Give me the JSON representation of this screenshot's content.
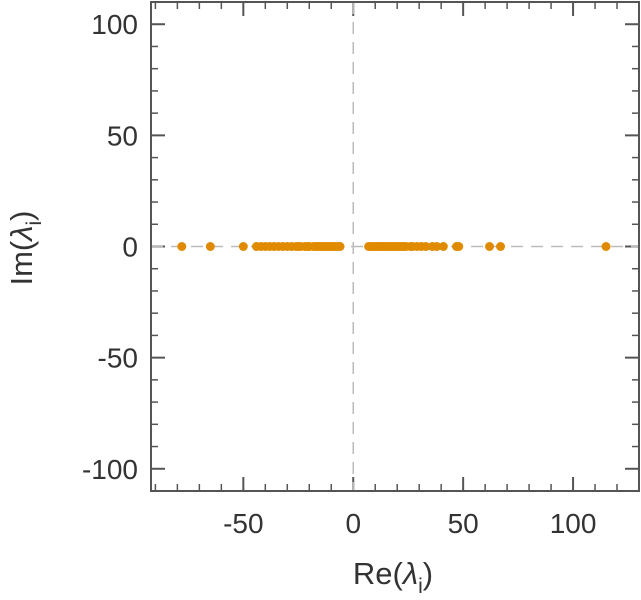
{
  "chart_data": {
    "type": "scatter",
    "xlabel": {
      "prefix": "Re(",
      "symbol": "λ",
      "subscript": "i",
      "suffix": ")"
    },
    "ylabel": {
      "prefix": "Im(",
      "symbol": "λ",
      "subscript": "i",
      "suffix": ")"
    },
    "xlim": [
      -92,
      130
    ],
    "ylim": [
      -110,
      110
    ],
    "xticks": [
      -50,
      0,
      50,
      100
    ],
    "yticks": [
      -100,
      -50,
      0,
      50,
      100
    ],
    "xtick_labels": [
      "-50",
      "0",
      "50",
      "100"
    ],
    "ytick_labels": [
      "-100",
      "-50",
      "0",
      "50",
      "100"
    ],
    "minor_step": 10,
    "zero_lines": true,
    "grid": false,
    "marker_color": "#E08A00",
    "series": [
      {
        "points": [
          [
            -78,
            0
          ],
          [
            -65,
            0
          ],
          [
            -50,
            0
          ],
          [
            -44,
            0
          ],
          [
            -42,
            0
          ],
          [
            -40,
            0
          ],
          [
            -38,
            0
          ],
          [
            -36,
            0
          ],
          [
            -34,
            0
          ],
          [
            -32,
            0
          ],
          [
            -30,
            0
          ],
          [
            -28,
            0
          ],
          [
            -26,
            0
          ],
          [
            -25,
            0
          ],
          [
            -24,
            0
          ],
          [
            -22,
            0
          ],
          [
            -21,
            0
          ],
          [
            -20,
            0
          ],
          [
            -18,
            0
          ],
          [
            -17,
            0
          ],
          [
            -16,
            0
          ],
          [
            -15,
            0
          ],
          [
            -14,
            0
          ],
          [
            -13,
            0
          ],
          [
            -12,
            0
          ],
          [
            -11,
            0
          ],
          [
            -10,
            0
          ],
          [
            -9,
            0
          ],
          [
            -8,
            0
          ],
          [
            -7,
            0
          ],
          [
            -6,
            0
          ],
          [
            7,
            0
          ],
          [
            8,
            0
          ],
          [
            9,
            0
          ],
          [
            10,
            0
          ],
          [
            11,
            0
          ],
          [
            12,
            0
          ],
          [
            13,
            0
          ],
          [
            14,
            0
          ],
          [
            15,
            0
          ],
          [
            16,
            0
          ],
          [
            17,
            0
          ],
          [
            18,
            0
          ],
          [
            19,
            0
          ],
          [
            20,
            0
          ],
          [
            21,
            0
          ],
          [
            22,
            0
          ],
          [
            23,
            0
          ],
          [
            24,
            0
          ],
          [
            26,
            0
          ],
          [
            27,
            0
          ],
          [
            29,
            0
          ],
          [
            31,
            0
          ],
          [
            33,
            0
          ],
          [
            36,
            0
          ],
          [
            38,
            0
          ],
          [
            41,
            0
          ],
          [
            47,
            0
          ],
          [
            48,
            0
          ],
          [
            62,
            0
          ],
          [
            67,
            0
          ],
          [
            115,
            0
          ]
        ]
      }
    ]
  }
}
